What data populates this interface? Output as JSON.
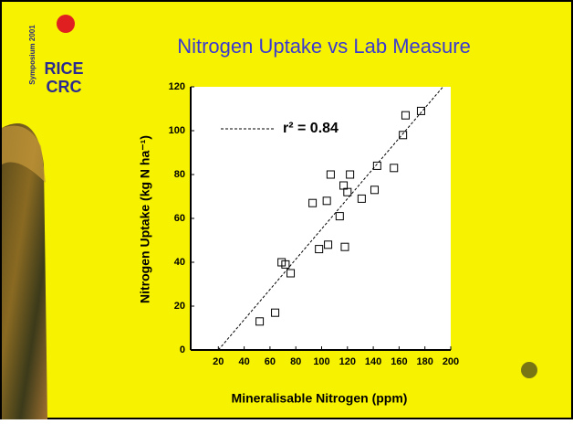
{
  "logo": {
    "side_text": "Symposium 2001",
    "top": "RICE",
    "bottom": "CRC"
  },
  "chart_data": {
    "type": "scatter",
    "title": "Nitrogen Uptake vs Lab Measure",
    "x_label": "Mineralisable Nitrogen (ppm)",
    "y_label": "Nitrogen Uptake (kg N ha⁻¹)",
    "legend_label": "r² = 0.84",
    "x": [
      52,
      64,
      69,
      72,
      76,
      98,
      105,
      93,
      104,
      107,
      117,
      114,
      118,
      120,
      122,
      131,
      141,
      143,
      156,
      163,
      165,
      177
    ],
    "values": [
      13,
      17,
      40,
      39,
      35,
      46,
      48,
      67,
      68,
      80,
      75,
      61,
      47,
      72,
      80,
      69,
      73,
      84,
      83,
      98,
      107,
      109
    ],
    "color": "#000000",
    "trendline": {
      "x": [
        20,
        194
      ],
      "y": [
        0,
        120
      ]
    },
    "xlim": [
      0,
      200
    ],
    "xticks": [
      20,
      40,
      60,
      80,
      100,
      120,
      140,
      160,
      180,
      200
    ],
    "ylim": [
      0,
      120
    ],
    "yticks": [
      0,
      20,
      40,
      60,
      80,
      100,
      120
    ],
    "grid": false
  }
}
